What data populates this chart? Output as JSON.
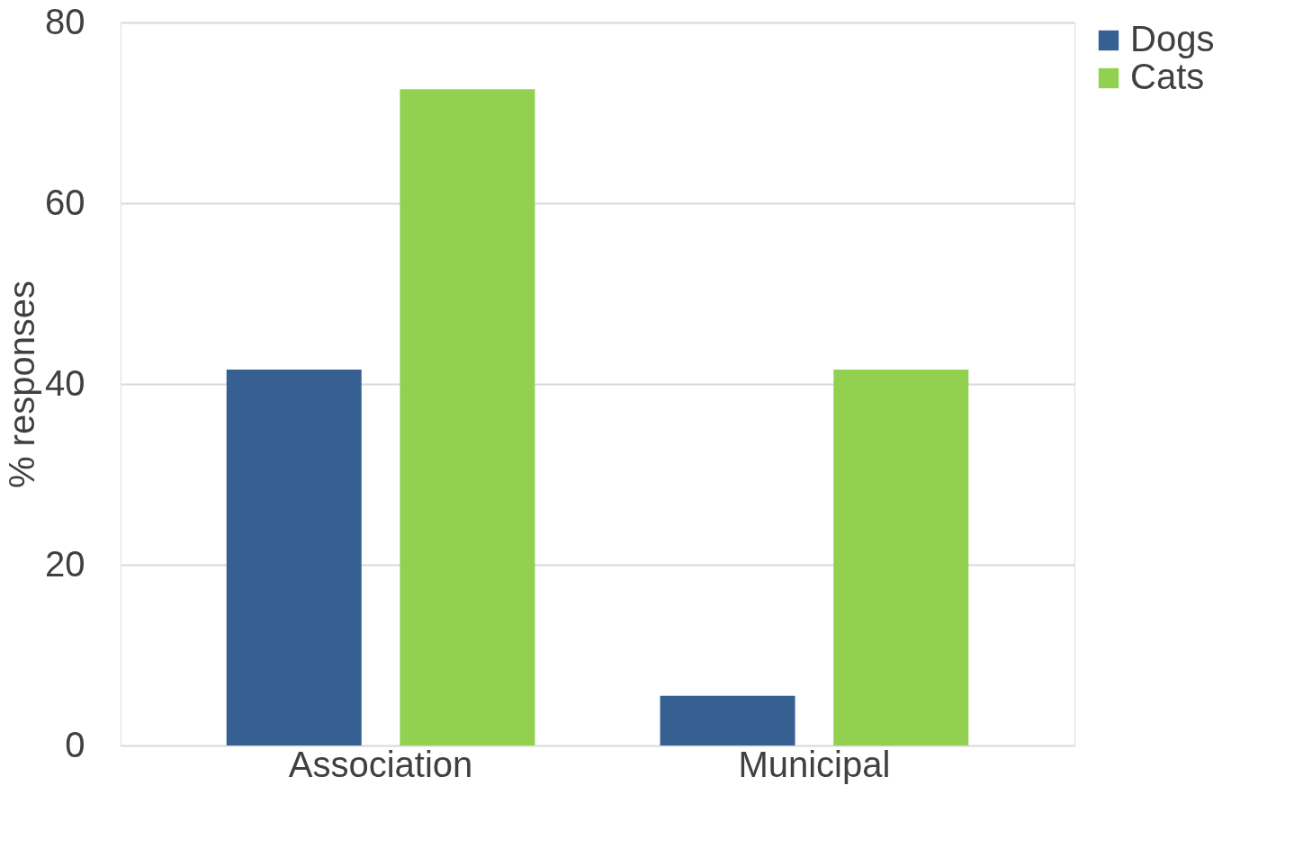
{
  "chart_data": {
    "type": "bar",
    "ylabel": "% responses",
    "categories": [
      "Association",
      "Municipal"
    ],
    "series": [
      {
        "name": "Dogs",
        "color": "#376092",
        "values": [
          41.6,
          5.5
        ]
      },
      {
        "name": "Cats",
        "color": "#92d050",
        "values": [
          72.6,
          41.6
        ]
      }
    ],
    "ylim": [
      0,
      80
    ],
    "yticks": [
      0,
      20,
      40,
      60,
      80
    ],
    "grid": "y",
    "legend": "right"
  }
}
